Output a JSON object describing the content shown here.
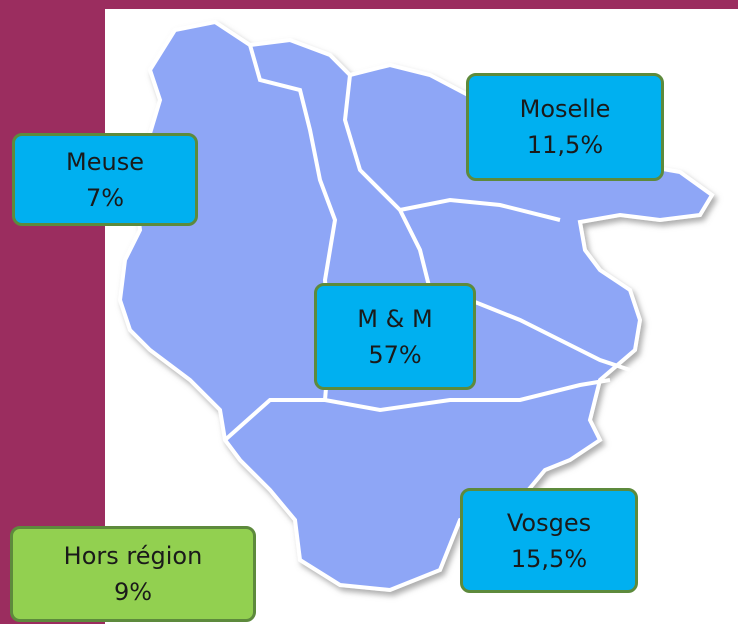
{
  "regions": [
    {
      "name": "Meuse",
      "share": "7%"
    },
    {
      "name": "Moselle",
      "share": "11,5%"
    },
    {
      "name": "M & M",
      "share": "57%"
    },
    {
      "name": "Vosges",
      "share": "15,5%"
    },
    {
      "name": "Hors région",
      "share": "9%"
    }
  ]
}
